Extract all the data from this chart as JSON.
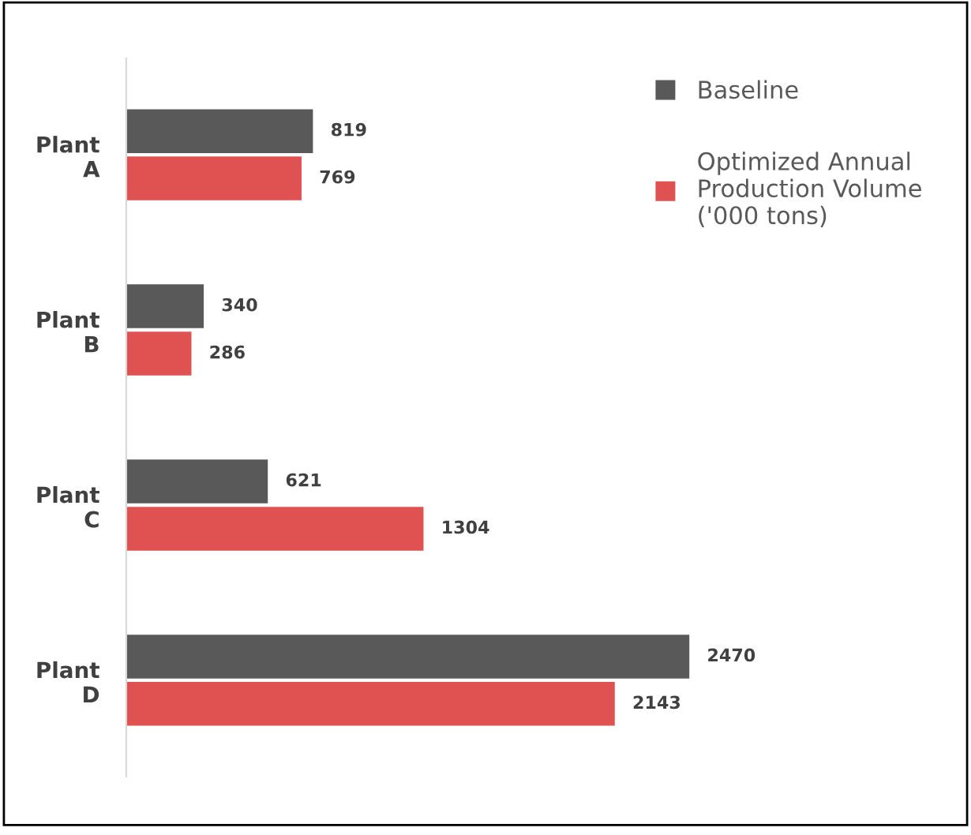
{
  "chart_data": {
    "type": "bar",
    "orientation": "horizontal",
    "categories": [
      "Plant A",
      "Plant B",
      "Plant C",
      "Plant D"
    ],
    "series": [
      {
        "name": "Baseline",
        "color": "#595959",
        "values": [
          819,
          340,
          621,
          2470
        ]
      },
      {
        "name": "Optimized Annual Production Volume ('000 tons)",
        "color": "#e05252",
        "values": [
          769,
          286,
          1304,
          2143
        ]
      }
    ],
    "data_labels": true,
    "legend": "top right",
    "grid": false
  }
}
